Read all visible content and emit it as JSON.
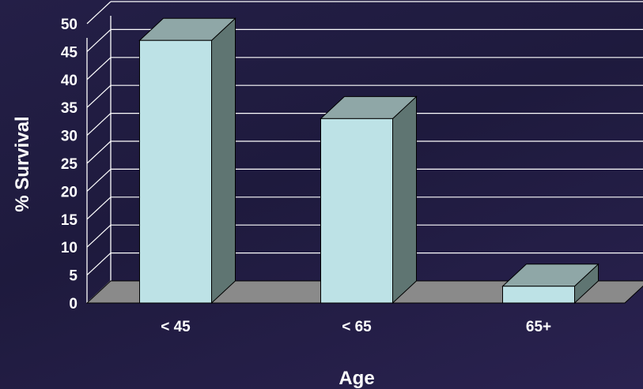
{
  "chart_data": {
    "type": "bar",
    "categories": [
      "< 45",
      "< 65",
      "65+"
    ],
    "values": [
      47,
      33,
      3
    ],
    "title": "",
    "xlabel": "Age",
    "ylabel": "% Survival",
    "ylim": [
      0,
      50
    ],
    "yticks": [
      0,
      5,
      10,
      15,
      20,
      25,
      30,
      35,
      40,
      45,
      50
    ],
    "grid": true,
    "style": "3d",
    "colors": {
      "bar_front": "#bde2e6",
      "bar_top": "#8fa7a7",
      "bar_side": "#5f7572",
      "floor": "#8a8a8a",
      "gridline": "#ffffff",
      "text": "#ffffff"
    }
  }
}
